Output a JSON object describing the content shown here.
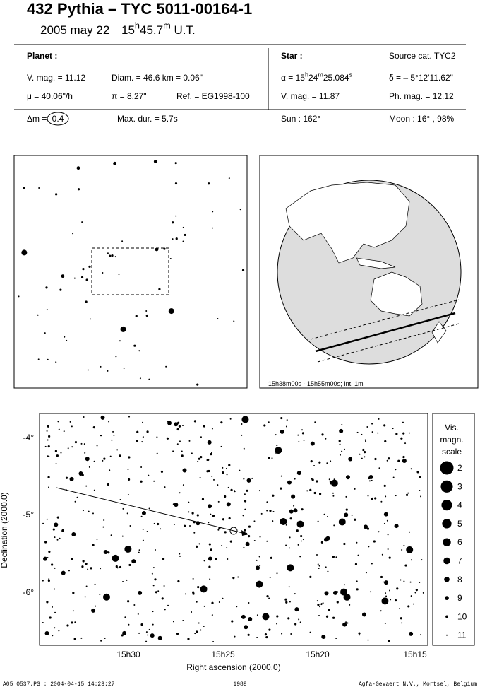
{
  "header": {
    "title": "432 Pythia  –  TYC 5011-00164-1",
    "date": "2005 may 22",
    "time": [
      "15",
      "h",
      "45.7",
      "m",
      " U.T."
    ]
  },
  "planet": {
    "heading": "Planet :",
    "vmag": "V. mag. = 11.12",
    "diam": "Diam. = 46.6 km = 0.06\"",
    "mu": "μ = 40.06\"/h",
    "pi": "π =  8.27\"",
    "ref": "Ref. = EG1998-100"
  },
  "star": {
    "heading": "Star :",
    "source": "Source cat.  TYC2",
    "alpha": [
      "α = 15",
      "h",
      "24",
      "m",
      "25.084",
      "s"
    ],
    "delta": "δ = – 5°12'11.62\"",
    "vmag": "V. mag. = 11.87",
    "phmag": "Ph. mag. = 12.12"
  },
  "event": {
    "dm_label": "Δm = ",
    "dm": "0.4",
    "maxdur": "Max. dur. = 5.7s",
    "sun": "Sun : 162°",
    "moon": "Moon :  16° , 98%"
  },
  "globe": {
    "caption": "15h38m00s - 15h55m00s; Int.  1m"
  },
  "sky": {
    "yticks": [
      "-4°",
      "-5°",
      "-6°"
    ],
    "xticks": [
      "15h30",
      "15h25",
      "15h20",
      "15h15"
    ],
    "xlabel": "Right ascension (2000.0)",
    "ylabel": "Declination (2000.0)"
  },
  "scale": {
    "title": [
      "Vis.",
      "magn.",
      "scale"
    ],
    "magnitudes": [
      2,
      3,
      4,
      5,
      6,
      7,
      8,
      9,
      10,
      11
    ]
  },
  "footer": {
    "file": "A05_0537.PS : 2004-04-15 14:23:27",
    "number": "1989",
    "credit": "Agfa-Gevaert N.V., Mortsel, Belgium"
  }
}
